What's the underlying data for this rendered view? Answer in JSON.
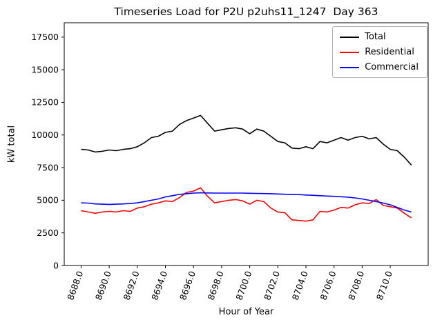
{
  "chart_data": {
    "type": "line",
    "title": "Timeseries Load for P2U p2uhs11_1247  Day 363",
    "xlabel": "Hour of Year",
    "ylabel": "kW total",
    "grid": false,
    "legend_position": "upper right",
    "xlim": [
      8686.8,
      8712.7
    ],
    "ylim": [
      0,
      18600
    ],
    "xticks": {
      "values": [
        8688,
        8690,
        8692,
        8694,
        8696,
        8698,
        8700,
        8702,
        8704,
        8706,
        8708,
        8710
      ],
      "labels": [
        "8688.0",
        "8690.0",
        "8692.0",
        "8694.0",
        "8696.0",
        "8698.0",
        "8700.0",
        "8702.0",
        "8704.0",
        "8706.0",
        "8708.0",
        "8710.0"
      ]
    },
    "yticks": {
      "values": [
        0,
        2500,
        5000,
        7500,
        10000,
        12500,
        15000,
        17500
      ],
      "labels": [
        "0",
        "2500",
        "5000",
        "7500",
        "10000",
        "12500",
        "15000",
        "17500"
      ]
    },
    "x": [
      8688.0,
      8688.5,
      8689.0,
      8689.5,
      8690.0,
      8690.5,
      8691.0,
      8691.5,
      8692.0,
      8692.5,
      8693.0,
      8693.5,
      8694.0,
      8694.5,
      8695.0,
      8695.5,
      8696.0,
      8696.5,
      8697.0,
      8697.5,
      8698.0,
      8698.5,
      8699.0,
      8699.5,
      8700.0,
      8700.5,
      8701.0,
      8701.5,
      8702.0,
      8702.5,
      8703.0,
      8703.5,
      8704.0,
      8704.5,
      8705.0,
      8705.5,
      8706.0,
      8706.5,
      8707.0,
      8707.5,
      8708.0,
      8708.5,
      8709.0,
      8709.5,
      8710.0,
      8710.5,
      8711.0,
      8711.5
    ],
    "series": [
      {
        "name": "Total",
        "color": "#000000",
        "values": [
          8900,
          8850,
          8700,
          8750,
          8850,
          8800,
          8900,
          8950,
          9100,
          9400,
          9800,
          9900,
          10200,
          10300,
          10800,
          11100,
          11300,
          11500,
          10900,
          10300,
          10400,
          10500,
          10550,
          10450,
          10100,
          10450,
          10300,
          9900,
          9500,
          9400,
          9000,
          8950,
          9100,
          8950,
          9500,
          9400,
          9600,
          9800,
          9600,
          9800,
          9900,
          9700,
          9800,
          9300,
          8900,
          8800,
          8300,
          7700
        ]
      },
      {
        "name": "Residential",
        "color": "#ff0000",
        "values": [
          4200,
          4100,
          4000,
          4100,
          4150,
          4100,
          4200,
          4150,
          4400,
          4500,
          4700,
          4800,
          4950,
          4900,
          5200,
          5600,
          5700,
          5950,
          5300,
          4800,
          4900,
          5000,
          5050,
          4950,
          4700,
          5000,
          4900,
          4400,
          4100,
          4050,
          3500,
          3450,
          3400,
          3500,
          4150,
          4100,
          4250,
          4450,
          4400,
          4650,
          4800,
          4750,
          5050,
          4600,
          4500,
          4400,
          4000,
          3650
        ]
      },
      {
        "name": "Commercial",
        "color": "#0000ff",
        "values": [
          4800,
          4780,
          4720,
          4700,
          4680,
          4700,
          4720,
          4750,
          4800,
          4900,
          5000,
          5100,
          5250,
          5350,
          5450,
          5500,
          5550,
          5570,
          5560,
          5550,
          5550,
          5550,
          5550,
          5550,
          5530,
          5520,
          5510,
          5500,
          5480,
          5460,
          5450,
          5430,
          5400,
          5380,
          5350,
          5320,
          5300,
          5270,
          5230,
          5180,
          5100,
          5000,
          4900,
          4780,
          4650,
          4450,
          4250,
          4100
        ]
      }
    ]
  }
}
